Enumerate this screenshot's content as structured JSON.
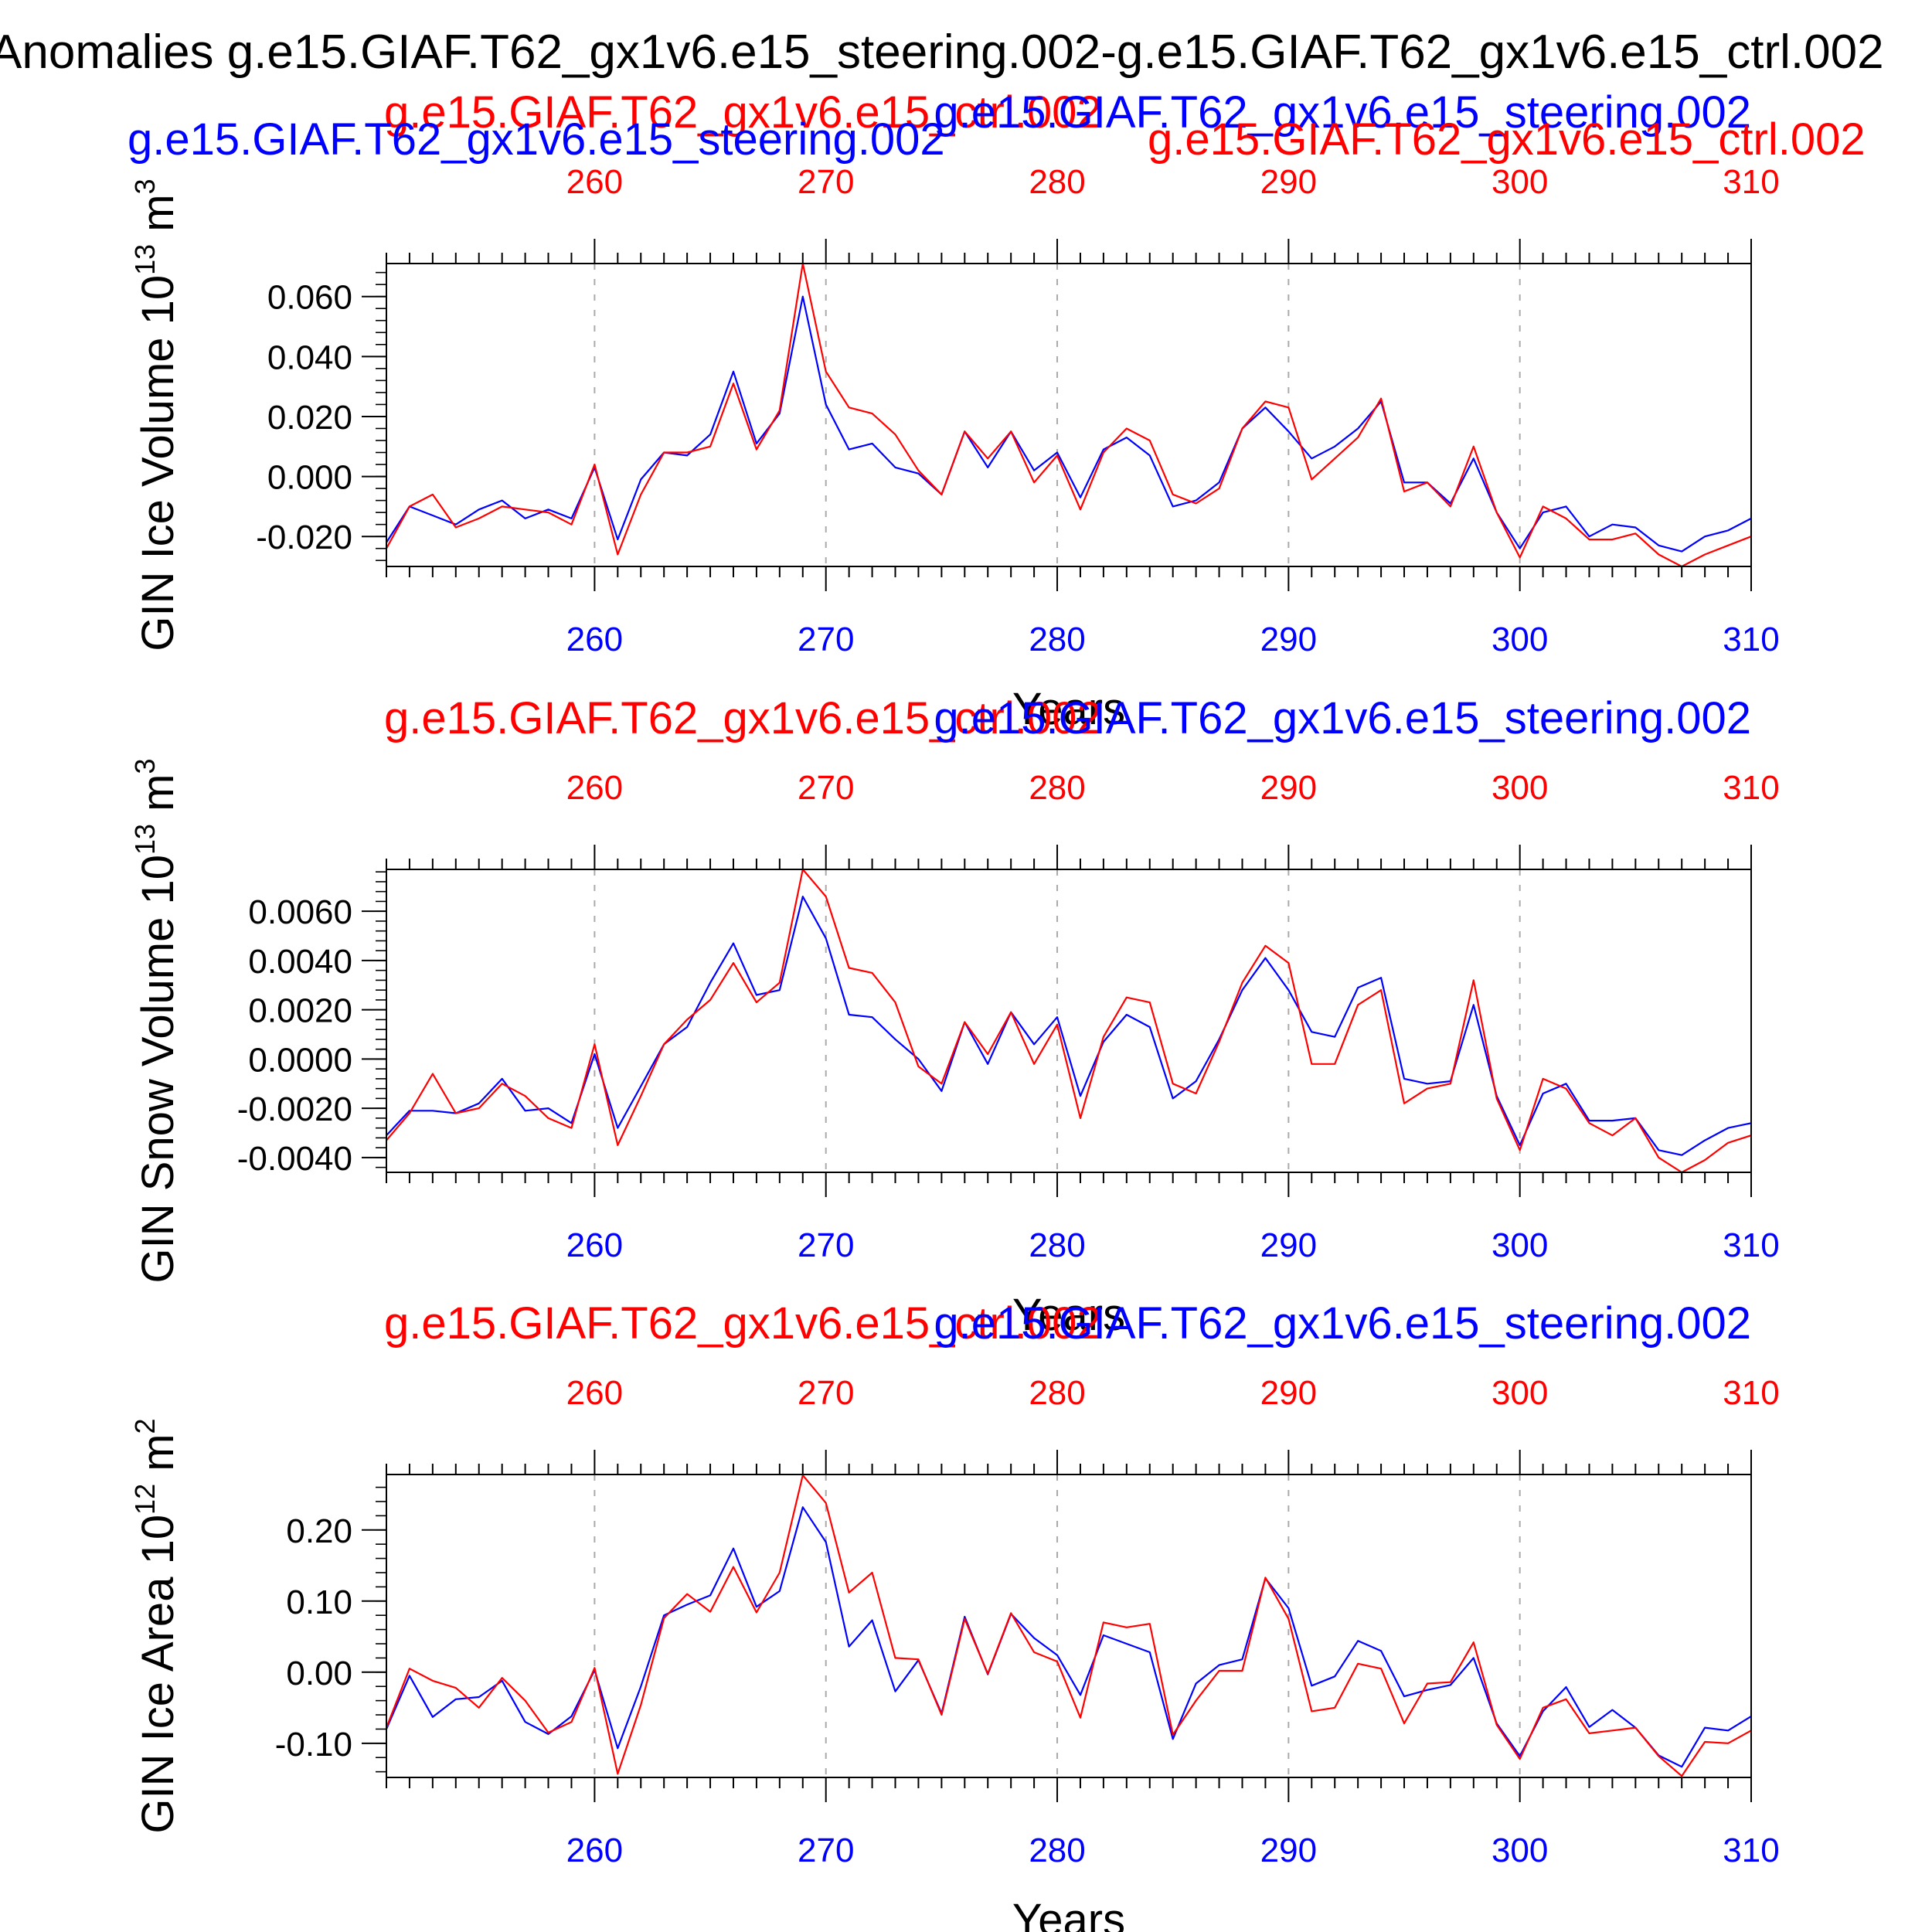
{
  "title": "Anomalies g.e15.GIAF.T62_gx1v6.e15_steering.002-g.e15.GIAF.T62_gx1v6.e15_ctrl.002",
  "colors": {
    "case": "#0000ff",
    "control": "#ff0000",
    "text": "#000000",
    "grid": "#aaaaaa"
  },
  "chart_data": [
    {
      "type": "line",
      "ylabel": "GIN Ice Volume 10",
      "ylabel_exp": "13",
      "ylabel_unit": " m",
      "ylabel_unit_exp": "3",
      "xlabel": "Years",
      "top_labels": {
        "red_main": "g.e15.GIAF.T62_gx1v6.e15_ctrl.002",
        "blue_main": "g.e15.GIAF.T62_gx1v6.e15_steering.002",
        "blue_left": "g.e15.GIAF.T62_gx1v6.e15_steering.002",
        "red_right": "g.e15.GIAF.T62_gx1v6.e15_ctrl.002"
      },
      "xlim": [
        251,
        310
      ],
      "ylim": [
        -0.03,
        0.071
      ],
      "xticks": [
        260,
        270,
        280,
        290,
        300,
        310
      ],
      "xtick_labels": [
        "260",
        "270",
        "280",
        "290",
        "300",
        "310"
      ],
      "yticks": [
        -0.02,
        0.0,
        0.02,
        0.04,
        0.06
      ],
      "ytick_labels": [
        "-0.020",
        "0.000",
        "0.020",
        "0.040",
        "0.060"
      ],
      "yminor_step": 0.004,
      "series": [
        {
          "name": "g.e15.GIAF.T62_gx1v6.e15_steering.002",
          "color": "#0000ff",
          "values": [
            -0.022,
            -0.01,
            -0.013,
            -0.016,
            -0.011,
            -0.008,
            -0.014,
            -0.011,
            -0.014,
            0.003,
            -0.021,
            -0.001,
            0.008,
            0.007,
            0.014,
            0.035,
            0.011,
            0.021,
            0.06,
            0.024,
            0.009,
            0.011,
            0.003,
            0.001,
            -0.006,
            0.015,
            0.003,
            0.015,
            0.002,
            0.008,
            -0.007,
            0.009,
            0.013,
            0.007,
            -0.01,
            -0.008,
            -0.002,
            0.016,
            0.023,
            0.015,
            0.006,
            0.01,
            0.016,
            0.025,
            -0.002,
            -0.002,
            -0.009,
            0.006,
            -0.012,
            -0.024,
            -0.012,
            -0.01,
            -0.02,
            -0.016,
            -0.017,
            -0.023,
            -0.025,
            -0.02,
            -0.018,
            -0.014
          ]
        },
        {
          "name": "g.e15.GIAF.T62_gx1v6.e15_ctrl.002",
          "color": "#ff0000",
          "values": [
            -0.024,
            -0.01,
            -0.006,
            -0.017,
            -0.014,
            -0.01,
            -0.011,
            -0.012,
            -0.016,
            0.004,
            -0.026,
            -0.006,
            0.008,
            0.008,
            0.01,
            0.031,
            0.009,
            0.022,
            0.071,
            0.035,
            0.023,
            0.021,
            0.014,
            0.002,
            -0.006,
            0.015,
            0.006,
            0.015,
            -0.002,
            0.007,
            -0.011,
            0.008,
            0.016,
            0.012,
            -0.006,
            -0.009,
            -0.004,
            0.016,
            0.025,
            0.023,
            -0.001,
            0.006,
            0.013,
            0.026,
            -0.005,
            -0.002,
            -0.01,
            0.01,
            -0.012,
            -0.027,
            -0.01,
            -0.014,
            -0.021,
            -0.021,
            -0.019,
            -0.026,
            -0.03,
            -0.026,
            -0.023,
            -0.02
          ]
        }
      ]
    },
    {
      "type": "line",
      "ylabel": "GIN Snow Volume 10",
      "ylabel_exp": "13",
      "ylabel_unit": " m",
      "ylabel_unit_exp": "3",
      "xlabel": "Years",
      "top_labels": {
        "red_main": "g.e15.GIAF.T62_gx1v6.e15_ctrl.002",
        "blue_main": "g.e15.GIAF.T62_gx1v6.e15_steering.002"
      },
      "xlim": [
        251,
        310
      ],
      "ylim": [
        -0.0046,
        0.0077
      ],
      "xticks": [
        260,
        270,
        280,
        290,
        300,
        310
      ],
      "xtick_labels": [
        "260",
        "270",
        "280",
        "290",
        "300",
        "310"
      ],
      "yticks": [
        -0.004,
        -0.002,
        0.0,
        0.002,
        0.004,
        0.006
      ],
      "ytick_labels": [
        "-0.0040",
        "-0.0020",
        "0.0000",
        "0.0020",
        "0.0040",
        "0.0060"
      ],
      "yminor_step": 0.0004,
      "series": [
        {
          "name": "g.e15.GIAF.T62_gx1v6.e15_steering.002",
          "color": "#0000ff",
          "values": [
            -0.0031,
            -0.0021,
            -0.0021,
            -0.0022,
            -0.0018,
            -0.0008,
            -0.0021,
            -0.002,
            -0.0026,
            0.0002,
            -0.0028,
            -0.0011,
            0.0006,
            0.0013,
            0.0031,
            0.0047,
            0.0026,
            0.0028,
            0.0066,
            0.0049,
            0.0018,
            0.0017,
            0.0008,
            0.0,
            -0.0013,
            0.0015,
            -0.0002,
            0.0019,
            0.0006,
            0.0017,
            -0.0015,
            0.0007,
            0.0018,
            0.0013,
            -0.0016,
            -0.0009,
            0.0008,
            0.0028,
            0.0041,
            0.0028,
            0.0011,
            0.0009,
            0.0029,
            0.0033,
            -0.0008,
            -0.001,
            -0.0009,
            0.0022,
            -0.0015,
            -0.0035,
            -0.0014,
            -0.001,
            -0.0025,
            -0.0025,
            -0.0024,
            -0.0037,
            -0.0039,
            -0.0033,
            -0.0028,
            -0.0026
          ]
        },
        {
          "name": "g.e15.GIAF.T62_gx1v6.e15_ctrl.002",
          "color": "#ff0000",
          "values": [
            -0.0033,
            -0.0022,
            -0.0006,
            -0.0022,
            -0.002,
            -0.001,
            -0.0015,
            -0.0024,
            -0.0028,
            0.0006,
            -0.0035,
            -0.0015,
            0.0006,
            0.0016,
            0.0024,
            0.0039,
            0.0023,
            0.0031,
            0.0077,
            0.0066,
            0.0037,
            0.0035,
            0.0023,
            -0.0003,
            -0.001,
            0.0015,
            0.0002,
            0.0019,
            -0.0002,
            0.0014,
            -0.0024,
            0.0009,
            0.0025,
            0.0023,
            -0.001,
            -0.0014,
            0.0007,
            0.0031,
            0.0046,
            0.0039,
            -0.0002,
            -0.0002,
            0.0022,
            0.0028,
            -0.0018,
            -0.0012,
            -0.001,
            0.0032,
            -0.0016,
            -0.0037,
            -0.0008,
            -0.0012,
            -0.0026,
            -0.0031,
            -0.0024,
            -0.004,
            -0.0046,
            -0.0041,
            -0.0034,
            -0.0031
          ]
        }
      ]
    },
    {
      "type": "line",
      "ylabel": "GIN Ice Area 10",
      "ylabel_exp": "12",
      "ylabel_unit": " m",
      "ylabel_unit_exp": "2",
      "xlabel": "Years",
      "top_labels": {
        "red_main": "g.e15.GIAF.T62_gx1v6.e15_ctrl.002",
        "blue_main": "g.e15.GIAF.T62_gx1v6.e15_steering.002"
      },
      "xlim": [
        251,
        310
      ],
      "ylim": [
        -0.148,
        0.278
      ],
      "xticks": [
        260,
        270,
        280,
        290,
        300,
        310
      ],
      "xtick_labels": [
        "260",
        "270",
        "280",
        "290",
        "300",
        "310"
      ],
      "yticks": [
        -0.1,
        0.0,
        0.1,
        0.2
      ],
      "ytick_labels": [
        "-0.10",
        "0.00",
        "0.10",
        "0.20"
      ],
      "yminor_step": 0.02,
      "series": [
        {
          "name": "g.e15.GIAF.T62_gx1v6.e15_steering.002",
          "color": "#0000ff",
          "values": [
            -0.08,
            -0.005,
            -0.063,
            -0.038,
            -0.035,
            -0.012,
            -0.07,
            -0.087,
            -0.062,
            0.003,
            -0.107,
            -0.02,
            0.08,
            0.095,
            0.108,
            0.174,
            0.092,
            0.114,
            0.232,
            0.183,
            0.036,
            0.073,
            -0.027,
            0.017,
            -0.058,
            0.078,
            -0.003,
            0.082,
            0.048,
            0.024,
            -0.032,
            0.052,
            0.04,
            0.028,
            -0.094,
            -0.016,
            0.01,
            0.018,
            0.132,
            0.09,
            -0.019,
            -0.006,
            0.044,
            0.03,
            -0.034,
            -0.025,
            -0.018,
            0.02,
            -0.072,
            -0.118,
            -0.055,
            -0.021,
            -0.077,
            -0.053,
            -0.078,
            -0.117,
            -0.133,
            -0.078,
            -0.082,
            -0.062
          ]
        },
        {
          "name": "g.e15.GIAF.T62_gx1v6.e15_ctrl.002",
          "color": "#ff0000",
          "values": [
            -0.078,
            0.005,
            -0.012,
            -0.022,
            -0.05,
            -0.008,
            -0.04,
            -0.085,
            -0.07,
            0.006,
            -0.143,
            -0.046,
            0.076,
            0.11,
            0.085,
            0.148,
            0.084,
            0.14,
            0.277,
            0.238,
            0.112,
            0.14,
            0.02,
            0.018,
            -0.06,
            0.075,
            -0.002,
            0.083,
            0.028,
            0.015,
            -0.064,
            0.07,
            0.063,
            0.068,
            -0.088,
            -0.04,
            0.002,
            0.002,
            0.133,
            0.075,
            -0.055,
            -0.05,
            0.012,
            0.005,
            -0.072,
            -0.016,
            -0.014,
            0.042,
            -0.074,
            -0.122,
            -0.05,
            -0.038,
            -0.086,
            -0.082,
            -0.078,
            -0.118,
            -0.146,
            -0.098,
            -0.1,
            -0.082
          ]
        }
      ]
    }
  ]
}
